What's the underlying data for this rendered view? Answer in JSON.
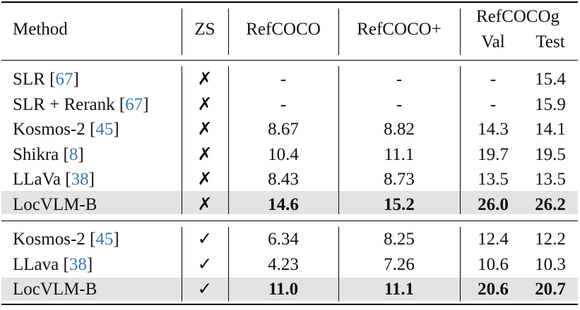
{
  "header": {
    "method": "Method",
    "zs": "ZS",
    "refcoco": "RefCOCO",
    "refcocop": "RefCOCO+",
    "refcocog": "RefCOCOg",
    "val": "Val",
    "test": "Test"
  },
  "section1": [
    {
      "method": "SLR ",
      "ref": "67",
      "zs": "✗",
      "refcoco": "-",
      "refcocop": "-",
      "val": "-",
      "test": "15.4"
    },
    {
      "method": "SLR + Rerank ",
      "ref": "67",
      "zs": "✗",
      "refcoco": "-",
      "refcocop": "-",
      "val": "-",
      "test": "15.9"
    },
    {
      "method": "Kosmos-2 ",
      "ref": "45",
      "zs": "✗",
      "refcoco": "8.67",
      "refcocop": "8.82",
      "val": "14.3",
      "test": "14.1"
    },
    {
      "method": "Shikra ",
      "ref": "8",
      "zs": "✗",
      "refcoco": "10.4",
      "refcocop": "11.1",
      "val": "19.7",
      "test": "19.5"
    },
    {
      "method": "LLaVa ",
      "ref": "38",
      "zs": "✗",
      "refcoco": "8.43",
      "refcocop": "8.73",
      "val": "13.5",
      "test": "13.5"
    },
    {
      "method": "LocVLM-B",
      "ref": "",
      "zs": "✗",
      "refcoco": "14.6",
      "refcocop": "15.2",
      "val": "26.0",
      "test": "26.2"
    }
  ],
  "section2": [
    {
      "method": "Kosmos-2 ",
      "ref": "45",
      "zs": "✓",
      "refcoco": "6.34",
      "refcocop": "8.25",
      "val": "12.4",
      "test": "12.2"
    },
    {
      "method": "LLava ",
      "ref": "38",
      "zs": "✓",
      "refcoco": "4.23",
      "refcocop": "7.26",
      "val": "10.6",
      "test": "10.3"
    },
    {
      "method": "LocVLM-B",
      "ref": "",
      "zs": "✓",
      "refcoco": "11.0",
      "refcocop": "11.1",
      "val": "20.6",
      "test": "20.7"
    }
  ]
}
